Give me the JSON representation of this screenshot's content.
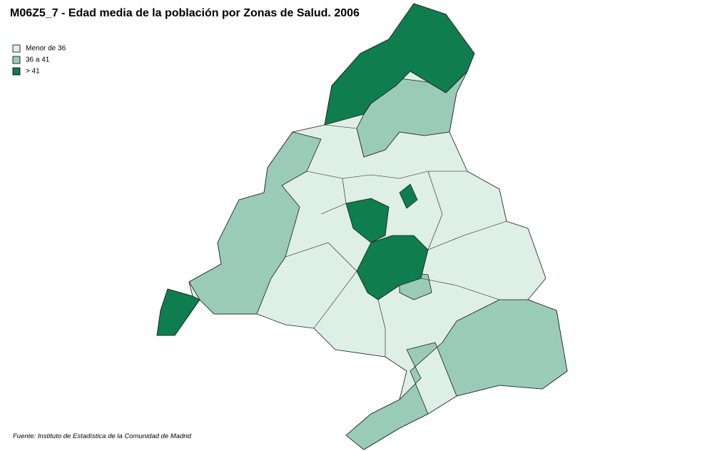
{
  "header": {
    "title": "M06Z5_7 - Edad media de la población por Zonas de Salud. 2006"
  },
  "legend": {
    "items": [
      {
        "label": "Menor de 36",
        "color": "#deefe5"
      },
      {
        "label": "36 a 41",
        "color": "#9acbb6"
      },
      {
        "label": "> 41",
        "color": "#0f7d4d"
      }
    ]
  },
  "footer": {
    "source": "Fuente: Instituto de Estadística de la Comunidad de Madrid"
  }
}
